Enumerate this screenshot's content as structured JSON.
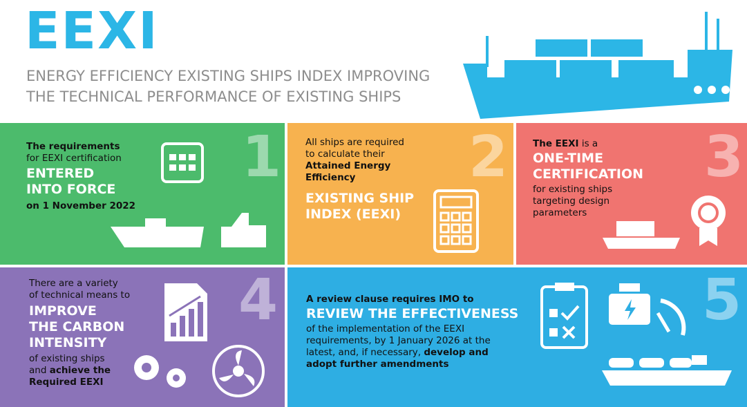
{
  "header": {
    "title": "EEXI",
    "subtitle": [
      "ENERGY EFFICIENCY EXISTING SHIPS INDEX IMPROVING",
      "THE TECHNICAL PERFORMANCE OF EXISTING SHIPS"
    ]
  },
  "panels": [
    {
      "number": "1",
      "lines": [
        "The requirements",
        "for EEXI certification",
        "ENTERED",
        "INTO FORCE",
        "on 1 November 2022"
      ]
    },
    {
      "number": "2",
      "lines": [
        "All ships are required",
        "to calculate their",
        "Attained Energy",
        "Efficiency",
        "EXISTING SHIP",
        "INDEX (EEXI)"
      ]
    },
    {
      "number": "3",
      "lines": [
        [
          "The EEXI",
          " is a"
        ],
        "ONE-TIME",
        "CERTIFICATION",
        "for existing ships",
        "targeting design",
        "parameters"
      ]
    },
    {
      "number": "4",
      "lines": [
        "There are a  variety",
        "of technical means to",
        "IMPROVE",
        "THE CARBON",
        "INTENSITY",
        "of existing ships",
        [
          "and ",
          "achieve the"
        ],
        "Required EEXI"
      ]
    },
    {
      "number": "5",
      "lines": [
        "A review clause requires IMO to",
        "REVIEW THE EFFECTIVENESS",
        "of the implementation of the EEXI",
        "requirements, by 1 January 2026 at the",
        [
          "latest, and, if necessary, ",
          "develop and"
        ],
        "adopt further amendments"
      ]
    }
  ]
}
